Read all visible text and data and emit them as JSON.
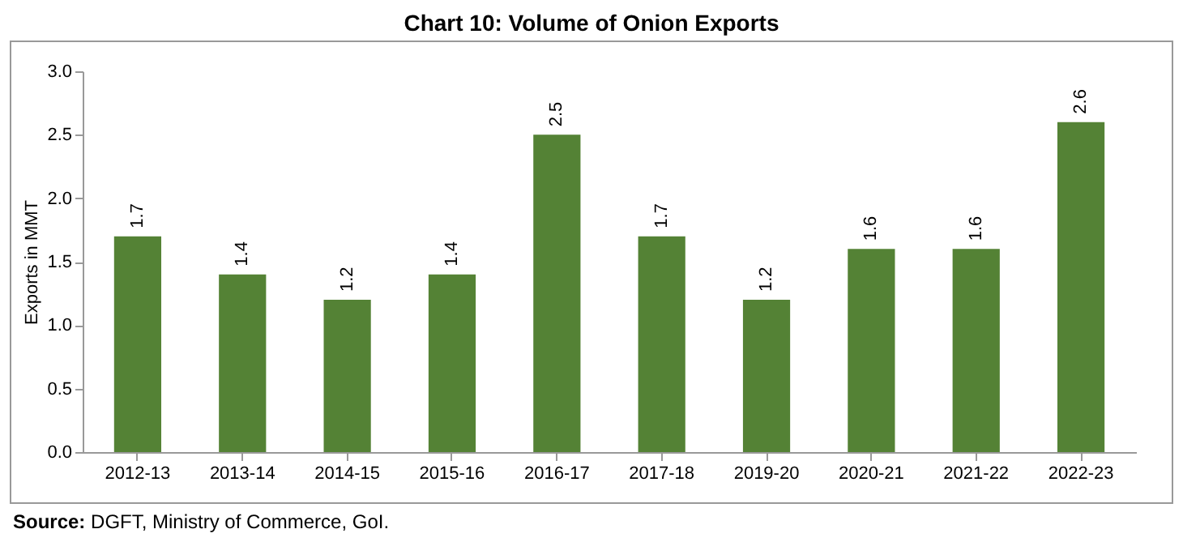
{
  "chart_data": {
    "type": "bar",
    "title": "Chart 10: Volume of Onion Exports",
    "categories": [
      "2012-13",
      "2013-14",
      "2014-15",
      "2015-16",
      "2016-17",
      "2017-18",
      "2019-20",
      "2020-21",
      "2021-22",
      "2022-23"
    ],
    "values": [
      1.7,
      1.4,
      1.2,
      1.4,
      2.5,
      1.7,
      1.2,
      1.6,
      1.6,
      2.6
    ],
    "color": "#548235",
    "ylabel": "Exports in MMT",
    "ylim": [
      0,
      3
    ],
    "yticks": [
      {
        "value": 0,
        "label": "0.0"
      },
      {
        "value": 0.5,
        "label": "0.5"
      },
      {
        "value": 1,
        "label": "1.0"
      },
      {
        "value": 1.5,
        "label": "1.5"
      },
      {
        "value": 2,
        "label": "2.0"
      },
      {
        "value": 2.5,
        "label": "2.5"
      },
      {
        "value": 3,
        "label": "3.0"
      }
    ],
    "grid": false,
    "data_labels": true,
    "annotations": [
      "Source: DGFT, Ministry of Commerce, GoI."
    ]
  }
}
